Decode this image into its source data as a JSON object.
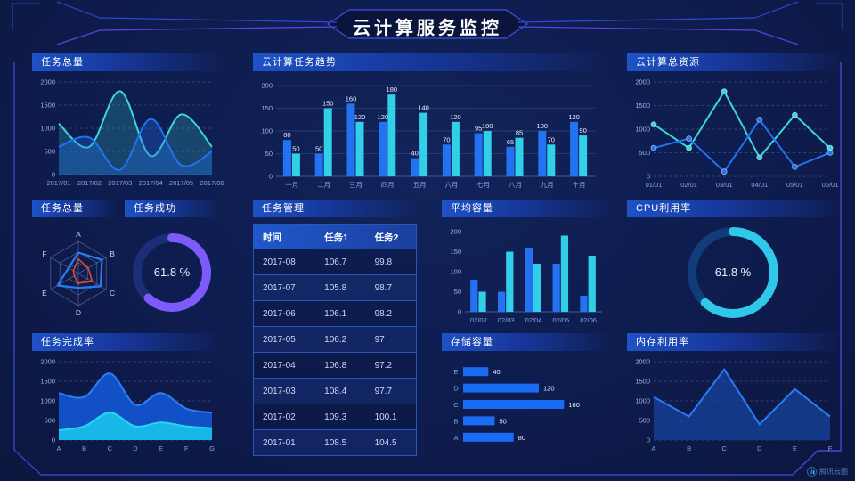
{
  "header": {
    "title": "云计算服务监控"
  },
  "watermark": {
    "label": "腾讯云图"
  },
  "colors": {
    "blue": "#2272f2",
    "cyan": "#32d0e8",
    "teal": "#3ad6d8",
    "purple": "#7c5bfa",
    "red": "#e34a2d",
    "deep_blue_fill": "#1254cc",
    "cyan_fill": "#17b8e8",
    "bg": "#0e1c4e",
    "panel_header": "#1e52c6"
  },
  "panels": {
    "tasks_total_line": {
      "title": "任务总量"
    },
    "task_trend": {
      "title": "云计算任务趋势"
    },
    "total_resources": {
      "title": "云计算总资源"
    },
    "tasks_radar": {
      "title": "任务总量"
    },
    "task_success": {
      "title": "任务成功"
    },
    "task_table": {
      "title": "任务管理"
    },
    "avg_capacity": {
      "title": "平均容量"
    },
    "cpu": {
      "title": "CPU利用率"
    },
    "completion": {
      "title": "任务完成率"
    },
    "storage": {
      "title": "存储容量"
    },
    "memory": {
      "title": "内存利用率"
    }
  },
  "table": {
    "headers": [
      "时间",
      "任务1",
      "任务2"
    ],
    "rows": [
      [
        "2017-08",
        "106.7",
        "99.8"
      ],
      [
        "2017-07",
        "105.8",
        "98.7"
      ],
      [
        "2017-06",
        "106.1",
        "98.2"
      ],
      [
        "2017-05",
        "106.2",
        "97"
      ],
      [
        "2017-04",
        "106.8",
        "97.2"
      ],
      [
        "2017-03",
        "108.4",
        "97.7"
      ],
      [
        "2017-02",
        "109.3",
        "100.1"
      ],
      [
        "2017-01",
        "108.5",
        "104.5"
      ]
    ]
  },
  "chart_data": [
    {
      "id": "tasks_total_line",
      "type": "area",
      "title": "任务总量",
      "smooth": true,
      "grid": "dash",
      "x": [
        "2017/01",
        "2017/02",
        "2017/03",
        "2017/04",
        "2017/05",
        "2017/06"
      ],
      "ylim": [
        0,
        2000
      ],
      "yticks": [
        0,
        500,
        1000,
        1500,
        2000
      ],
      "series": [
        {
          "name": "series-cyan",
          "color": "#3ad6d8",
          "area": true,
          "fill_opacity": 0.22,
          "values": [
            1100,
            600,
            1800,
            400,
            1300,
            600
          ]
        },
        {
          "name": "series-blue",
          "color": "#2272f2",
          "area": true,
          "fill_opacity": 0.3,
          "values": [
            600,
            800,
            100,
            1200,
            200,
            500
          ]
        }
      ]
    },
    {
      "id": "task_trend",
      "type": "bar",
      "title": "云计算任务趋势",
      "grid": "solid",
      "value_labels": true,
      "categories": [
        "一月",
        "二月",
        "三月",
        "四月",
        "五月",
        "六月",
        "七月",
        "八月",
        "九月",
        "十月"
      ],
      "ylim": [
        0,
        200
      ],
      "yticks": [
        0,
        50,
        100,
        150,
        200
      ],
      "series": [
        {
          "name": "任务1",
          "color": "#2272f2",
          "values": [
            80,
            50,
            160,
            120,
            40,
            70,
            95,
            65,
            100,
            120
          ]
        },
        {
          "name": "任务2",
          "color": "#32d0e8",
          "values": [
            50,
            150,
            120,
            180,
            140,
            120,
            100,
            85,
            70,
            90
          ]
        }
      ]
    },
    {
      "id": "total_resources",
      "type": "line",
      "title": "云计算总资源",
      "smooth": false,
      "markers": true,
      "grid": "dash",
      "x": [
        "01/01",
        "02/01",
        "03/01",
        "04/01",
        "05/01",
        "06/01"
      ],
      "ylim": [
        0,
        2000
      ],
      "yticks": [
        0,
        500,
        1000,
        1500,
        2000
      ],
      "series": [
        {
          "name": "series-cyan",
          "color": "#3ad6d8",
          "values": [
            1100,
            600,
            1800,
            400,
            1300,
            600
          ]
        },
        {
          "name": "series-blue",
          "color": "#2272f2",
          "values": [
            600,
            800,
            100,
            1200,
            200,
            500
          ]
        }
      ]
    },
    {
      "id": "tasks_radar",
      "type": "radar",
      "title": "任务总量",
      "max": 100,
      "axes": [
        "A",
        "B",
        "C",
        "D",
        "E",
        "F"
      ],
      "series": [
        {
          "name": "blue-polygon",
          "color": "#2b7bf5",
          "width": 2.2,
          "values": [
            65,
            85,
            80,
            45,
            75,
            35
          ]
        },
        {
          "name": "red-polygon",
          "color": "#e34a2d",
          "width": 1.6,
          "values": [
            45,
            35,
            50,
            30,
            15,
            18
          ]
        }
      ]
    },
    {
      "id": "task_success",
      "type": "donut",
      "title": "任务成功",
      "value": 61.8,
      "label": "61.8 %",
      "color": "#7c5bfa",
      "track": "#1b2f78"
    },
    {
      "id": "avg_capacity",
      "type": "bar",
      "title": "平均容量",
      "grid": "none",
      "value_labels": false,
      "categories": [
        "02/02",
        "02/03",
        "02/04",
        "02/05",
        "02/06"
      ],
      "ylim": [
        0,
        200
      ],
      "yticks": [
        0,
        50,
        100,
        150,
        200
      ],
      "series": [
        {
          "name": "series-blue",
          "color": "#2272f2",
          "values": [
            80,
            50,
            160,
            120,
            40
          ]
        },
        {
          "name": "series-cyan",
          "color": "#32d0e8",
          "values": [
            50,
            150,
            120,
            190,
            140
          ]
        }
      ]
    },
    {
      "id": "cpu",
      "type": "donut",
      "title": "CPU利用率",
      "value": 61.8,
      "label": "61.8 %",
      "color": "#2fc8e8",
      "track": "#123b7a"
    },
    {
      "id": "completion",
      "type": "area",
      "title": "任务完成率",
      "smooth": true,
      "grid": "dash",
      "x": [
        "A",
        "B",
        "C",
        "D",
        "E",
        "F",
        "G"
      ],
      "ylim": [
        0,
        2000
      ],
      "yticks": [
        0,
        500,
        1000,
        1500,
        2000
      ],
      "series": [
        {
          "name": "blue-area",
          "color": "#2e7ff5",
          "area": true,
          "fill": "#1254cc",
          "fill_opacity": 0.95,
          "values": [
            1200,
            1100,
            1700,
            900,
            1200,
            800,
            700
          ]
        },
        {
          "name": "cyan-area",
          "color": "#2fd3f0",
          "area": true,
          "fill": "#17b8e8",
          "fill_opacity": 1,
          "values": [
            250,
            350,
            700,
            350,
            450,
            350,
            300
          ]
        }
      ]
    },
    {
      "id": "storage",
      "type": "hbar",
      "title": "存储容量",
      "color": "#1a6cf5",
      "xmax": 175,
      "value_labels": true,
      "categories": [
        "E",
        "D",
        "C",
        "B",
        "A"
      ],
      "values": [
        40,
        120,
        160,
        50,
        80
      ]
    },
    {
      "id": "memory",
      "type": "line",
      "title": "内存利用率",
      "smooth": false,
      "markers": false,
      "grid": "dash",
      "x": [
        "A",
        "B",
        "C",
        "D",
        "E",
        "F"
      ],
      "ylim": [
        0,
        2000
      ],
      "yticks": [
        0,
        500,
        1000,
        1500,
        2000
      ],
      "series": [
        {
          "name": "series-blue",
          "color": "#2b7bf5",
          "area": true,
          "fill": "#16439c",
          "fill_opacity": 0.75,
          "values": [
            1100,
            600,
            1800,
            400,
            1300,
            600
          ]
        }
      ]
    }
  ]
}
